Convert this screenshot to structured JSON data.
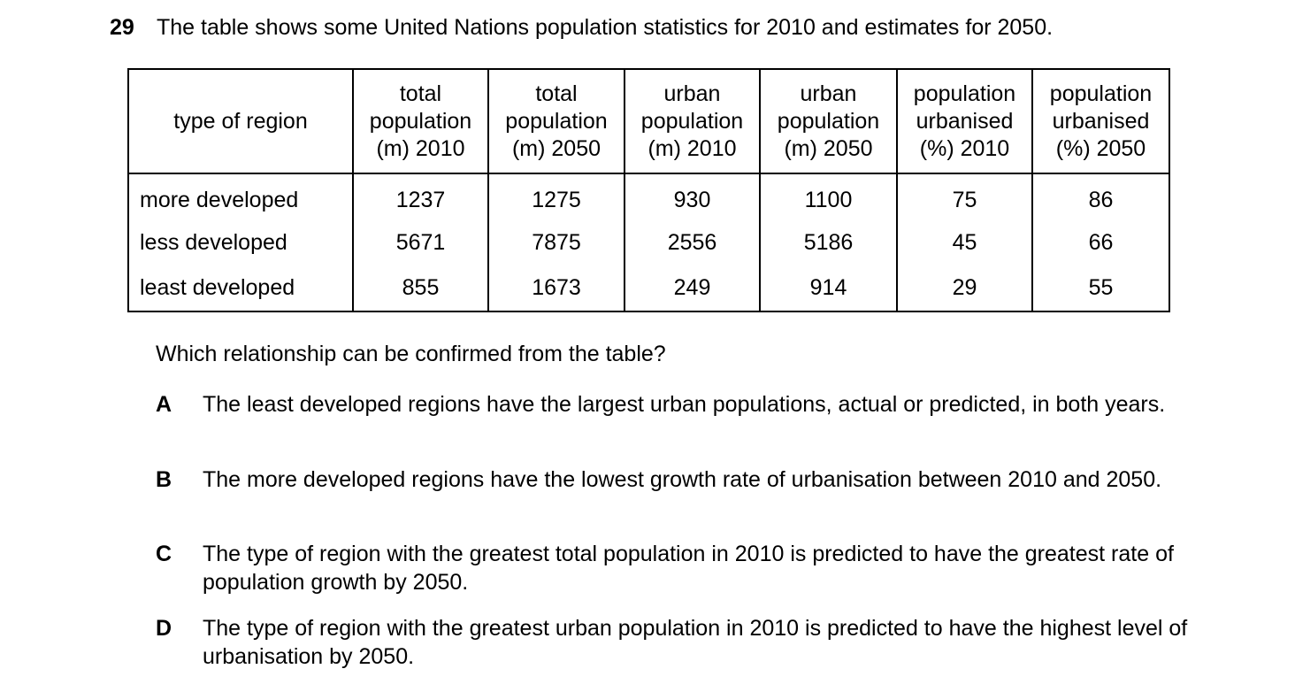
{
  "question": {
    "number": "29",
    "stem": "The table shows some United Nations population statistics for 2010 and estimates for 2050."
  },
  "table": {
    "headers": [
      [
        "type of region"
      ],
      [
        "total",
        "population",
        "(m) 2010"
      ],
      [
        "total",
        "population",
        "(m) 2050"
      ],
      [
        "urban",
        "population",
        "(m) 2010"
      ],
      [
        "urban",
        "population",
        "(m) 2050"
      ],
      [
        "population",
        "urbanised",
        "(%) 2010"
      ],
      [
        "population",
        "urbanised",
        "(%) 2050"
      ]
    ],
    "rows": [
      {
        "region": "more developed",
        "values": [
          "1237",
          "1275",
          "930",
          "1100",
          "75",
          "86"
        ]
      },
      {
        "region": "less developed",
        "values": [
          "5671",
          "7875",
          "2556",
          "5186",
          "45",
          "66"
        ]
      },
      {
        "region": "least developed",
        "values": [
          "855",
          "1673",
          "249",
          "914",
          "29",
          "55"
        ]
      }
    ]
  },
  "prompt": "Which relationship can be confirmed from the table?",
  "options": [
    {
      "letter": "A",
      "text": "The least developed regions have the largest urban populations, actual or predicted, in both years."
    },
    {
      "letter": "B",
      "text": "The more developed regions have the lowest growth rate of urbanisation between 2010 and 2050."
    },
    {
      "letter": "C",
      "text": "The type of region with the greatest total population in 2010 is predicted to have the greatest rate of population growth by 2050."
    },
    {
      "letter": "D",
      "text": "The type of region with the greatest urban population in 2010 is predicted to have the highest level of urbanisation by 2050."
    }
  ]
}
